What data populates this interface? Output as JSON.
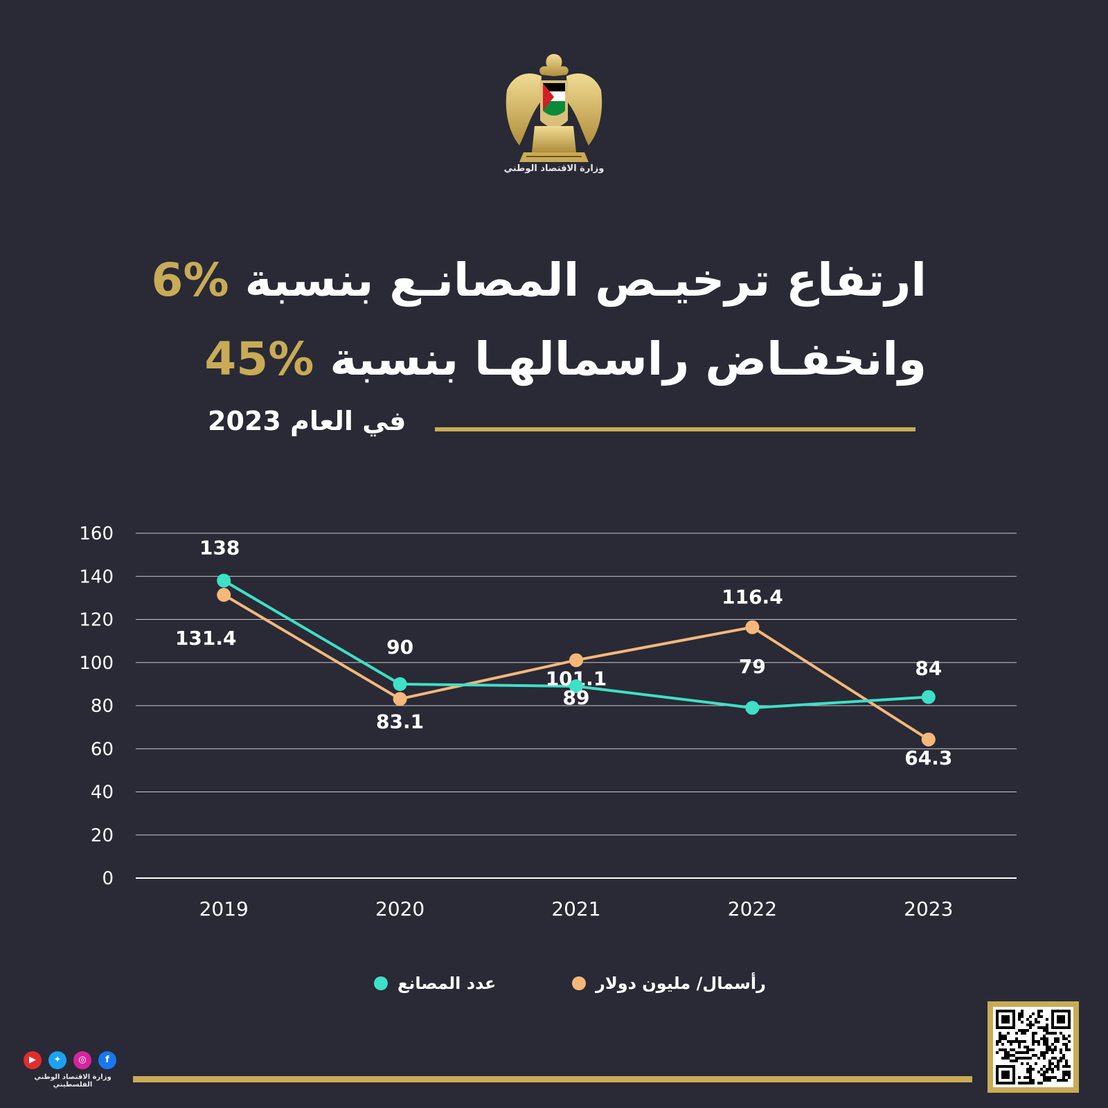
{
  "header": {
    "ministry_name": "وزارة الاقتصاد الوطني",
    "logo_icon": "palestine-eagle-emblem-icon"
  },
  "headline": {
    "line1_text": "ارتفاع ترخيـص المصانـع بنسبة",
    "line1_value": "%6",
    "line2_text": "وانخفـاض راسمالهـا بنسبة",
    "line2_value": "%45",
    "subtitle": "في العام 2023"
  },
  "chart_data": {
    "type": "line",
    "x": [
      "2019",
      "2020",
      "2021",
      "2022",
      "2023"
    ],
    "ylim": [
      0,
      160
    ],
    "yticks": [
      0,
      20,
      40,
      60,
      80,
      100,
      120,
      140,
      160
    ],
    "grid": true,
    "legend_position": "bottom",
    "series": [
      {
        "name": "عدد المصانع",
        "values": [
          138,
          90,
          89,
          79,
          84
        ],
        "labels": [
          "138",
          "90",
          "89",
          "79",
          "84"
        ],
        "color": "#3ee0c6"
      },
      {
        "name": "رأسمال/ مليون دولار",
        "values": [
          131.4,
          83.1,
          101.1,
          116.4,
          64.3
        ],
        "labels": [
          "131.4",
          "83.1",
          "101.1",
          "116.4",
          "64.3"
        ],
        "color": "#f5b87a"
      }
    ]
  },
  "footer": {
    "social_label": "وزارة الاقتصاد الوطني الفلسطيني",
    "social_icons": [
      "facebook-icon",
      "instagram-icon",
      "twitter-icon",
      "youtube-icon"
    ],
    "qr_icon": "qr-code-icon"
  },
  "colors": {
    "background": "#292a36",
    "gold": "#c9ab56",
    "factories": "#3ee0c6",
    "capital": "#f5b87a"
  }
}
